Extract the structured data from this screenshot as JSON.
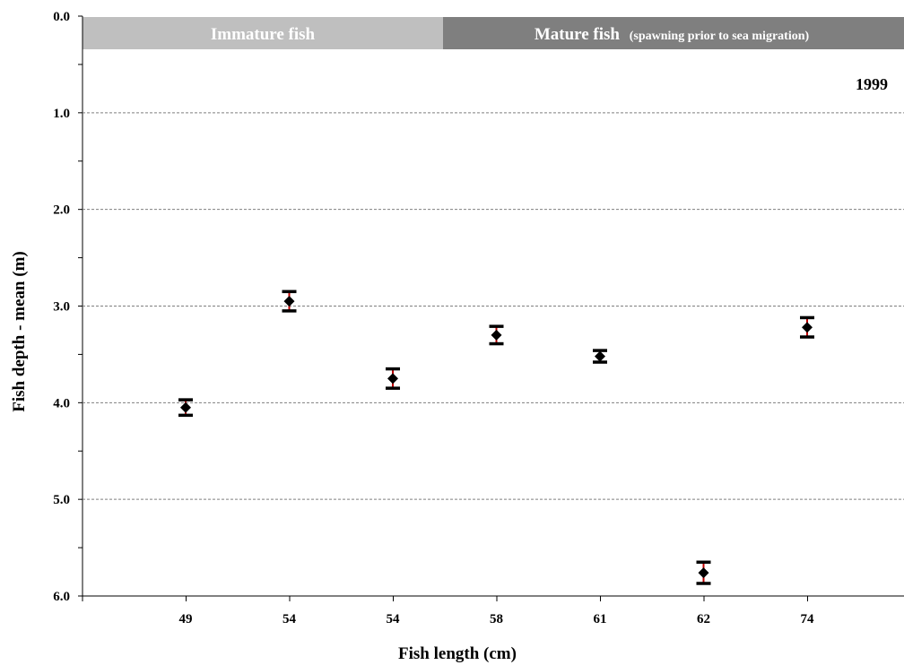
{
  "chart_data": {
    "type": "scatter",
    "title": "",
    "xlabel": "Fish length (cm)",
    "ylabel": "Fish depth - mean (m)",
    "y_reversed": true,
    "ylim": [
      0,
      6
    ],
    "y_ticks": [
      "0.0",
      "1.0",
      "2.0",
      "3.0",
      "4.0",
      "5.0",
      "6.0"
    ],
    "grid": "horizontal dashed",
    "categories": [
      "49",
      "54",
      "54",
      "58",
      "61",
      "62",
      "74"
    ],
    "values": [
      4.05,
      2.95,
      3.75,
      3.3,
      3.52,
      5.76,
      3.22
    ],
    "error": [
      0.08,
      0.1,
      0.1,
      0.09,
      0.06,
      0.11,
      0.1
    ],
    "marker_color": "#000000",
    "errorbar_color": "#000000",
    "annotation": "1999",
    "groups": [
      {
        "label": "Immature fish",
        "note": "",
        "color": "#bfbfbf"
      },
      {
        "label": "Mature fish",
        "note": "(spawning prior to sea migration)",
        "color": "#7f7f7f"
      }
    ]
  }
}
